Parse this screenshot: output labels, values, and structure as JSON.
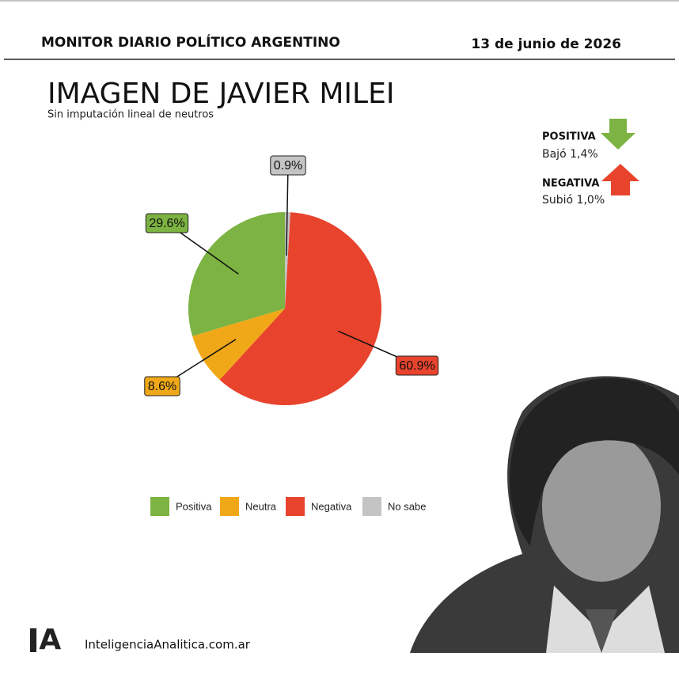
{
  "header": {
    "title": "MONITOR DIARIO POLÍTICO ARGENTINO",
    "date": "13 de junio de 2026"
  },
  "chart_data": {
    "type": "pie",
    "title": "IMAGEN DE JAVIER MILEI",
    "subtitle": "Sin imputación lineal de neutros",
    "categories": [
      "Positiva",
      "Neutra",
      "Negativa",
      "No sabe"
    ],
    "values": [
      29.6,
      8.6,
      60.9,
      0.9
    ],
    "value_labels": [
      "29.6%",
      "8.6%",
      "60.9%",
      "0.9%"
    ],
    "colors": [
      "#7cb342",
      "#f0a818",
      "#e8432d",
      "#c4c4c4"
    ],
    "legend": "bottom"
  },
  "indicators": [
    {
      "label": "POSITIVA",
      "change": "Bajó 1,4%"
    },
    {
      "label": "NEGATIVA",
      "change": "Subió 1,0%"
    }
  ],
  "footer": {
    "logo": "IA",
    "website": "InteligenciaAnalitica.com.ar"
  }
}
